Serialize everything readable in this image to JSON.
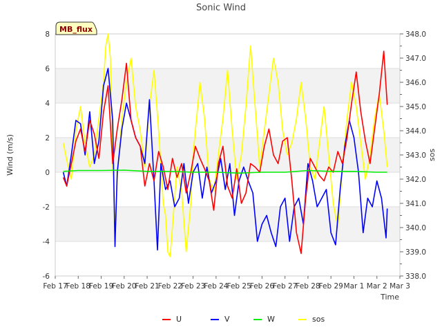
{
  "chart_data": {
    "type": "line",
    "title": "Sonic Wind",
    "badge": "MB_flux",
    "xlabel": "Time",
    "ylabel": "Wind (m/s)",
    "y2label": "sos",
    "x_ticks": [
      "Feb 17",
      "Feb 18",
      "Feb 19",
      "Feb 20",
      "Feb 21",
      "Feb 22",
      "Feb 23",
      "Feb 24",
      "Feb 25",
      "Feb 26",
      "Feb 27",
      "Feb 28",
      "Feb 29",
      "Mar 1",
      "Mar 2",
      "Mar 3"
    ],
    "xlim": [
      0,
      15
    ],
    "ylim": [
      -6,
      8
    ],
    "y_ticks": [
      -6,
      -4,
      -2,
      0,
      2,
      4,
      6,
      8
    ],
    "y2lim": [
      338.0,
      348.0
    ],
    "y2_ticks": [
      338.0,
      339.0,
      340.0,
      341.0,
      342.0,
      343.0,
      344.0,
      345.0,
      346.0,
      347.0,
      348.0
    ],
    "grid": "horizontal bands",
    "legend": "bottom",
    "series": [
      {
        "name": "U",
        "color": "#ff0000",
        "axis": "left",
        "x": [
          0.35,
          0.5,
          0.7,
          0.9,
          1.1,
          1.3,
          1.5,
          1.7,
          1.9,
          2.1,
          2.3,
          2.5,
          2.7,
          2.9,
          3.1,
          3.3,
          3.5,
          3.7,
          3.9,
          4.1,
          4.3,
          4.5,
          4.7,
          4.9,
          5.1,
          5.3,
          5.5,
          5.7,
          5.9,
          6.1,
          6.3,
          6.5,
          6.7,
          6.9,
          7.1,
          7.3,
          7.5,
          7.7,
          7.9,
          8.1,
          8.3,
          8.5,
          8.7,
          8.9,
          9.1,
          9.3,
          9.5,
          9.7,
          9.9,
          10.1,
          10.3,
          10.5,
          10.7,
          10.9,
          11.1,
          11.3,
          11.5,
          11.7,
          11.9,
          12.1,
          12.3,
          12.5,
          12.7,
          12.9,
          13.1,
          13.3,
          13.5,
          13.7,
          13.9,
          14.1,
          14.3,
          14.45
        ],
        "y": [
          -0.3,
          -0.8,
          0.5,
          1.8,
          2.5,
          1.2,
          3.0,
          2.2,
          0.8,
          3.5,
          5.0,
          0.5,
          2.5,
          4.2,
          6.3,
          3.0,
          2.0,
          1.5,
          -0.8,
          0.5,
          -0.5,
          1.2,
          0.3,
          -1.0,
          0.8,
          -0.3,
          0.5,
          -1.2,
          0.0,
          1.5,
          0.8,
          0.2,
          -0.5,
          -2.2,
          0.5,
          1.5,
          -0.8,
          -1.5,
          0.2,
          -1.8,
          -1.2,
          0.5,
          0.3,
          0.0,
          1.5,
          2.5,
          1.0,
          0.5,
          1.8,
          2.0,
          -0.5,
          -3.5,
          -4.7,
          -1.5,
          0.8,
          0.3,
          -0.2,
          -0.5,
          0.3,
          0.0,
          1.2,
          0.5,
          2.0,
          4.0,
          5.8,
          3.5,
          1.8,
          0.5,
          2.5,
          4.5,
          7.0,
          3.9
        ]
      },
      {
        "name": "V",
        "color": "#0000ff",
        "axis": "left",
        "x": [
          0.35,
          0.5,
          0.7,
          0.9,
          1.1,
          1.3,
          1.5,
          1.7,
          1.9,
          2.1,
          2.3,
          2.5,
          2.6,
          2.7,
          2.9,
          3.1,
          3.3,
          3.5,
          3.7,
          3.9,
          4.1,
          4.3,
          4.45,
          4.6,
          4.8,
          5.0,
          5.2,
          5.4,
          5.6,
          5.8,
          6.0,
          6.2,
          6.4,
          6.6,
          6.8,
          7.0,
          7.2,
          7.4,
          7.6,
          7.8,
          8.0,
          8.2,
          8.4,
          8.6,
          8.8,
          9.0,
          9.2,
          9.4,
          9.6,
          9.8,
          10.0,
          10.2,
          10.4,
          10.6,
          10.8,
          11.0,
          11.2,
          11.4,
          11.6,
          11.8,
          12.0,
          12.2,
          12.4,
          12.6,
          12.8,
          13.0,
          13.2,
          13.4,
          13.6,
          13.8,
          14.0,
          14.2,
          14.4,
          14.45
        ],
        "y": [
          0.0,
          -0.8,
          1.0,
          3.0,
          2.8,
          1.0,
          3.5,
          0.5,
          1.8,
          5.0,
          6.0,
          3.0,
          -4.3,
          0.0,
          2.5,
          4.0,
          3.0,
          2.0,
          1.5,
          0.5,
          4.2,
          -0.5,
          -4.5,
          0.5,
          -1.0,
          -0.5,
          -2.0,
          -1.5,
          0.5,
          -1.8,
          0.0,
          0.5,
          -1.5,
          0.3,
          -1.2,
          -0.5,
          0.8,
          -1.0,
          0.5,
          -2.5,
          -0.5,
          0.3,
          -0.5,
          -1.2,
          -4.0,
          -3.0,
          -2.5,
          -3.5,
          -4.3,
          -2.0,
          -1.5,
          -4.0,
          -2.0,
          -1.5,
          -3.0,
          0.5,
          -0.5,
          -2.0,
          -1.5,
          -1.0,
          -3.5,
          -4.2,
          -1.0,
          1.5,
          3.0,
          2.0,
          0.0,
          -3.5,
          -1.5,
          -2.0,
          -0.5,
          -1.5,
          -3.8,
          -2.1
        ]
      },
      {
        "name": "W",
        "color": "#00ee00",
        "axis": "left",
        "x": [
          0.35,
          1.0,
          2.0,
          3.0,
          4.0,
          5.0,
          6.0,
          7.0,
          8.0,
          9.0,
          10.0,
          11.0,
          12.0,
          13.0,
          14.0,
          14.45
        ],
        "y": [
          0.05,
          0.1,
          0.1,
          0.12,
          0.05,
          0.05,
          0.0,
          0.0,
          -0.05,
          0.0,
          0.0,
          0.1,
          0.05,
          0.05,
          0.0,
          0.0
        ]
      },
      {
        "name": "sos",
        "color": "#ffff00",
        "axis": "right",
        "x": [
          0.35,
          0.5,
          0.7,
          0.9,
          1.1,
          1.3,
          1.5,
          1.7,
          1.9,
          2.1,
          2.2,
          2.3,
          2.4,
          2.5,
          2.6,
          2.7,
          2.9,
          3.1,
          3.3,
          3.5,
          3.7,
          3.9,
          4.1,
          4.3,
          4.5,
          4.7,
          4.8,
          4.9,
          5.0,
          5.1,
          5.3,
          5.5,
          5.7,
          5.9,
          6.0,
          6.1,
          6.3,
          6.5,
          6.7,
          6.9,
          7.1,
          7.3,
          7.5,
          7.7,
          7.9,
          8.1,
          8.3,
          8.5,
          8.7,
          8.9,
          9.1,
          9.3,
          9.5,
          9.7,
          9.9,
          10.1,
          10.3,
          10.5,
          10.7,
          10.9,
          11.1,
          11.3,
          11.5,
          11.7,
          11.9,
          12.1,
          12.3,
          12.5,
          12.7,
          12.9,
          13.1,
          13.3,
          13.5,
          13.7,
          13.9,
          14.1,
          14.3,
          14.45
        ],
        "y": [
          343.5,
          342.8,
          342.0,
          344.0,
          345.0,
          343.5,
          342.5,
          343.0,
          344.5,
          346.0,
          347.5,
          348.0,
          347.0,
          342.5,
          340.0,
          342.0,
          344.5,
          346.0,
          347.0,
          345.0,
          344.0,
          342.5,
          345.0,
          346.5,
          344.0,
          341.0,
          340.5,
          339.0,
          338.8,
          340.0,
          342.5,
          341.5,
          339.0,
          341.0,
          343.0,
          344.0,
          346.0,
          344.5,
          342.0,
          341.5,
          343.0,
          344.5,
          346.5,
          344.0,
          342.0,
          343.0,
          345.0,
          347.5,
          345.0,
          342.5,
          344.0,
          345.5,
          347.0,
          346.0,
          344.0,
          343.0,
          343.5,
          344.5,
          346.0,
          344.5,
          342.5,
          342.0,
          343.5,
          345.0,
          343.0,
          341.0,
          340.0,
          342.5,
          344.5,
          346.0,
          345.0,
          343.5,
          342.0,
          343.0,
          344.5,
          345.5,
          344.0,
          342.5
        ]
      }
    ]
  }
}
